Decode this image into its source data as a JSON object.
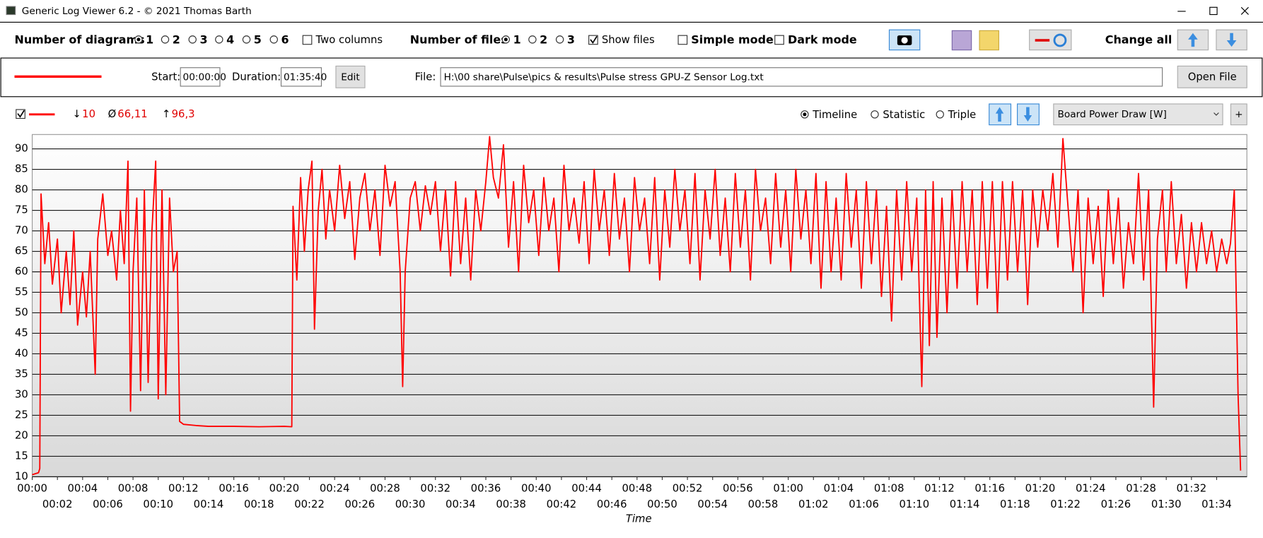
{
  "window": {
    "title": "Generic Log Viewer 6.2 - © 2021 Thomas Barth"
  },
  "toolbar": {
    "diagrams_label": "Number of diagrams",
    "diagram_options": [
      "1",
      "2",
      "3",
      "4",
      "5",
      "6"
    ],
    "two_columns": "Two columns",
    "files_label": "Number of files",
    "file_options": [
      "1",
      "2",
      "3"
    ],
    "show_files": "Show files",
    "simple_mode": "Simple mode",
    "dark_mode": "Dark mode",
    "change_all": "Change all"
  },
  "file_bar": {
    "start_label": "Start:",
    "start_value": "00:00:00",
    "duration_label": "Duration:",
    "duration_value": "01:35:40",
    "edit": "Edit",
    "file_label": "File:",
    "file_path": "H:\\00 share\\Pulse\\pics & results\\Pulse stress GPU-Z Sensor Log.txt",
    "open_file": "Open File"
  },
  "diagram": {
    "stats": [
      {
        "symbol": "↓",
        "value": "10"
      },
      {
        "symbol": "Ø",
        "value": "66,11"
      },
      {
        "symbol": "↑",
        "value": "96,3"
      }
    ],
    "views": [
      "Timeline",
      "Statistic",
      "Triple"
    ],
    "add": "+"
  },
  "chart_data": {
    "type": "line",
    "x_label": "Time",
    "x": [
      0,
      0.5,
      0.6,
      0.7,
      1,
      1.3,
      1.6,
      2,
      2.3,
      2.7,
      3,
      3.3,
      3.6,
      4,
      4.3,
      4.6,
      5,
      5.2,
      5.6,
      6,
      6.3,
      6.7,
      7,
      7.3,
      7.6,
      7.8,
      8,
      8.3,
      8.6,
      8.9,
      9.2,
      9.5,
      9.8,
      10,
      10.3,
      10.6,
      10.9,
      11.2,
      11.5,
      11.7,
      12,
      13,
      14,
      16,
      18,
      20,
      20.6,
      20.7,
      21,
      21.3,
      21.6,
      21.9,
      22.2,
      22.4,
      22.7,
      23,
      23.3,
      23.6,
      24,
      24.4,
      24.8,
      25.2,
      25.6,
      26,
      26.4,
      26.8,
      27.2,
      27.6,
      28,
      28.4,
      28.8,
      29.2,
      29.4,
      29.6,
      30,
      30.4,
      30.8,
      31.2,
      31.6,
      32,
      32.4,
      32.8,
      33.2,
      33.6,
      34,
      34.4,
      34.8,
      35.2,
      35.6,
      36,
      36.3,
      36.6,
      37,
      37.4,
      37.8,
      38.2,
      38.6,
      39,
      39.4,
      39.8,
      40.2,
      40.6,
      41,
      41.4,
      41.8,
      42.2,
      42.6,
      43,
      43.4,
      43.8,
      44.2,
      44.6,
      45,
      45.4,
      45.8,
      46.2,
      46.6,
      47,
      47.4,
      47.8,
      48.2,
      48.6,
      49,
      49.4,
      49.8,
      50.2,
      50.6,
      51,
      51.4,
      51.8,
      52.2,
      52.6,
      53,
      53.4,
      53.8,
      54.2,
      54.6,
      55,
      55.4,
      55.8,
      56.2,
      56.6,
      57,
      57.4,
      57.8,
      58.2,
      58.6,
      59,
      59.4,
      59.8,
      60.2,
      60.6,
      61,
      61.4,
      61.8,
      62.2,
      62.6,
      63,
      63.4,
      63.8,
      64.2,
      64.6,
      65,
      65.4,
      65.8,
      66.2,
      66.6,
      67,
      67.4,
      67.8,
      68.2,
      68.6,
      69,
      69.4,
      69.8,
      70.2,
      70.6,
      70.9,
      71.2,
      71.5,
      71.8,
      72.2,
      72.6,
      73,
      73.4,
      73.8,
      74.2,
      74.6,
      75,
      75.4,
      75.8,
      76.2,
      76.6,
      77,
      77.4,
      77.8,
      78.2,
      78.6,
      79,
      79.4,
      79.8,
      80.2,
      80.6,
      81,
      81.4,
      81.8,
      82.2,
      82.6,
      83,
      83.4,
      83.8,
      84.2,
      84.6,
      85,
      85.4,
      85.8,
      86.2,
      86.6,
      87,
      87.4,
      87.8,
      88.2,
      88.6,
      89,
      89.3,
      89.7,
      90,
      90.4,
      90.8,
      91.2,
      91.6,
      92,
      92.4,
      92.8,
      93.2,
      93.6,
      94,
      94.4,
      94.8,
      95.1,
      95.4,
      95.7,
      95.9
    ],
    "series": [
      {
        "name": "Board Power Draw [W]",
        "color": "#ff0000",
        "values": [
          10.5,
          11,
          12,
          79,
          62,
          72,
          57,
          68,
          50,
          65,
          52,
          70,
          47,
          60,
          49,
          65,
          35,
          68,
          79,
          64,
          70,
          58,
          75,
          62,
          87,
          26,
          60,
          78,
          31,
          80,
          33,
          70,
          87,
          29,
          80,
          30,
          78,
          60,
          65,
          23.5,
          22.8,
          22.5,
          22.3,
          22.3,
          22.2,
          22.3,
          22.2,
          76,
          58,
          83,
          65,
          80,
          87,
          46,
          75,
          85,
          68,
          80,
          70,
          86,
          73,
          82,
          63,
          78,
          84,
          70,
          80,
          64,
          86,
          76,
          82,
          60,
          32,
          60,
          78,
          82,
          70,
          81,
          74,
          82,
          65,
          80,
          59,
          82,
          62,
          78,
          58,
          80,
          70,
          82,
          93,
          83,
          78,
          91,
          66,
          82,
          60,
          86,
          72,
          80,
          64,
          83,
          70,
          78,
          60,
          86,
          70,
          78,
          67,
          82,
          62,
          85,
          70,
          80,
          64,
          84,
          68,
          78,
          60,
          83,
          70,
          78,
          62,
          83,
          58,
          80,
          66,
          85,
          70,
          80,
          62,
          84,
          58,
          80,
          68,
          85,
          64,
          78,
          60,
          84,
          66,
          80,
          58,
          85,
          70,
          78,
          62,
          84,
          66,
          80,
          60,
          85,
          68,
          80,
          62,
          84,
          56,
          82,
          60,
          78,
          58,
          84,
          66,
          80,
          56,
          82,
          62,
          80,
          54,
          76,
          48,
          80,
          58,
          82,
          60,
          78,
          32,
          80,
          42,
          82,
          44,
          78,
          50,
          80,
          56,
          82,
          60,
          80,
          52,
          82,
          56,
          82,
          50,
          82,
          58,
          82,
          60,
          80,
          52,
          80,
          66,
          80,
          70,
          84,
          66,
          92.5,
          76,
          60,
          80,
          50,
          78,
          62,
          76,
          54,
          80,
          62,
          78,
          56,
          72,
          62,
          84,
          58,
          80,
          27,
          68,
          80,
          60,
          82,
          62,
          74,
          56,
          72,
          60,
          72,
          62,
          70,
          60,
          68,
          62,
          67,
          80,
          30,
          11.5
        ]
      }
    ],
    "xlim": [
      0,
      96.4
    ],
    "ylim": [
      10,
      93.5
    ],
    "xticks": [
      {
        "value": 0,
        "label": "00:00"
      },
      {
        "value": 2,
        "label": "00:02"
      },
      {
        "value": 4,
        "label": "00:04"
      },
      {
        "value": 6,
        "label": "00:06"
      },
      {
        "value": 8,
        "label": "00:08"
      },
      {
        "value": 10,
        "label": "00:10"
      },
      {
        "value": 12,
        "label": "00:12"
      },
      {
        "value": 14,
        "label": "00:14"
      },
      {
        "value": 16,
        "label": "00:16"
      },
      {
        "value": 18,
        "label": "00:18"
      },
      {
        "value": 20,
        "label": "00:20"
      },
      {
        "value": 22,
        "label": "00:22"
      },
      {
        "value": 24,
        "label": "00:24"
      },
      {
        "value": 26,
        "label": "00:26"
      },
      {
        "value": 28,
        "label": "00:28"
      },
      {
        "value": 30,
        "label": "00:30"
      },
      {
        "value": 32,
        "label": "00:32"
      },
      {
        "value": 34,
        "label": "00:34"
      },
      {
        "value": 36,
        "label": "00:36"
      },
      {
        "value": 38,
        "label": "00:38"
      },
      {
        "value": 40,
        "label": "00:40"
      },
      {
        "value": 42,
        "label": "00:42"
      },
      {
        "value": 44,
        "label": "00:44"
      },
      {
        "value": 46,
        "label": "00:46"
      },
      {
        "value": 48,
        "label": "00:48"
      },
      {
        "value": 50,
        "label": "00:50"
      },
      {
        "value": 52,
        "label": "00:52"
      },
      {
        "value": 54,
        "label": "00:54"
      },
      {
        "value": 56,
        "label": "00:56"
      },
      {
        "value": 58,
        "label": "00:58"
      },
      {
        "value": 60,
        "label": "01:00"
      },
      {
        "value": 62,
        "label": "01:02"
      },
      {
        "value": 64,
        "label": "01:04"
      },
      {
        "value": 66,
        "label": "01:06"
      },
      {
        "value": 68,
        "label": "01:08"
      },
      {
        "value": 70,
        "label": "01:10"
      },
      {
        "value": 72,
        "label": "01:12"
      },
      {
        "value": 74,
        "label": "01:14"
      },
      {
        "value": 76,
        "label": "01:16"
      },
      {
        "value": 78,
        "label": "01:18"
      },
      {
        "value": 80,
        "label": "01:20"
      },
      {
        "value": 82,
        "label": "01:22"
      },
      {
        "value": 84,
        "label": "01:24"
      },
      {
        "value": 86,
        "label": "01:26"
      },
      {
        "value": 88,
        "label": "01:28"
      },
      {
        "value": 90,
        "label": "01:30"
      },
      {
        "value": 92,
        "label": "01:32"
      },
      {
        "value": 94,
        "label": "01:34"
      }
    ],
    "yticks": [
      10,
      15,
      20,
      25,
      30,
      35,
      40,
      45,
      50,
      55,
      60,
      65,
      70,
      75,
      80,
      85,
      90
    ],
    "grid": true
  }
}
